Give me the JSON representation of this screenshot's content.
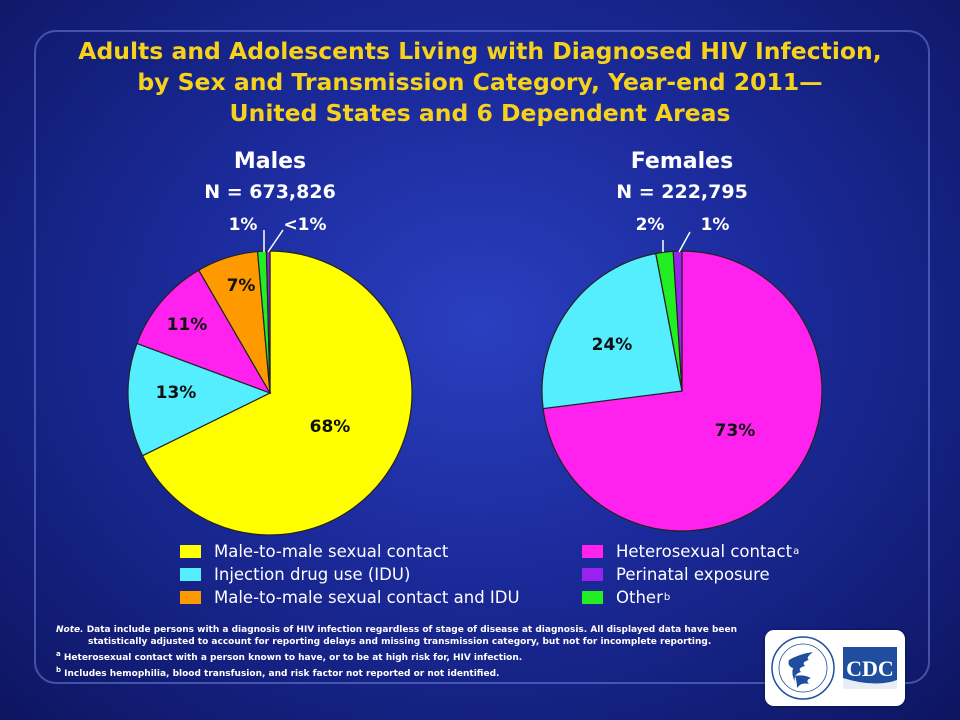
{
  "title": {
    "line1": "Adults and Adolescents Living with Diagnosed HIV Infection,",
    "line2": "by Sex and Transmission Category, Year-end 2011—",
    "line3": "United States and 6 Dependent Areas"
  },
  "colors": {
    "title": "#f7d21a",
    "male_to_male": "#ffff00",
    "idu": "#55eeff",
    "male_to_male_and_idu": "#ff9900",
    "heterosexual": "#ff22ee",
    "perinatal": "#9922ee",
    "other": "#22ee22"
  },
  "chart_data": [
    {
      "type": "pie",
      "title": "Males",
      "subtitle": "N = 673,826",
      "slices": [
        {
          "label": "Male-to-male sexual contact",
          "value": 68,
          "display": "68%",
          "color": "#ffff00"
        },
        {
          "label": "Injection drug use (IDU)",
          "value": 13,
          "display": "13%",
          "color": "#55eeff"
        },
        {
          "label": "Heterosexual contact",
          "value": 11,
          "display": "11%",
          "color": "#ff22ee"
        },
        {
          "label": "Male-to-male sexual contact and IDU",
          "value": 7,
          "display": "7%",
          "color": "#ff9900"
        },
        {
          "label": "Other",
          "value": 1,
          "display": "1%",
          "color": "#22ee22"
        },
        {
          "label": "Perinatal exposure",
          "value": 0.4,
          "display": "<1%",
          "color": "#9922ee"
        }
      ]
    },
    {
      "type": "pie",
      "title": "Females",
      "subtitle": "N = 222,795",
      "slices": [
        {
          "label": "Heterosexual contact",
          "value": 73,
          "display": "73%",
          "color": "#ff22ee"
        },
        {
          "label": "Injection drug use (IDU)",
          "value": 24,
          "display": "24%",
          "color": "#55eeff"
        },
        {
          "label": "Other",
          "value": 2,
          "display": "2%",
          "color": "#22ee22"
        },
        {
          "label": "Perinatal exposure",
          "value": 1,
          "display": "1%",
          "color": "#9922ee"
        }
      ]
    }
  ],
  "legend_left": [
    {
      "label": "Male-to-male sexual contact",
      "sup": "",
      "color": "#ffff00"
    },
    {
      "label": "Injection drug use (IDU)",
      "sup": "",
      "color": "#55eeff"
    },
    {
      "label": "Male-to-male sexual contact and IDU",
      "sup": "",
      "color": "#ff9900"
    }
  ],
  "legend_right": [
    {
      "label": "Heterosexual contact",
      "sup": "a",
      "color": "#ff22ee"
    },
    {
      "label": "Perinatal exposure",
      "sup": "",
      "color": "#9922ee"
    },
    {
      "label": "Other",
      "sup": "b",
      "color": "#22ee22"
    }
  ],
  "notes": {
    "note_prefix": "Note.",
    "note_line1": "Data include persons with a diagnosis of HIV infection regardless of stage of disease at diagnosis. All displayed data have been",
    "note_line2": "statistically adjusted to account for reporting delays and missing transmission category, but not for incomplete reporting.",
    "footnote_a_mark": "a",
    "footnote_a": "Heterosexual contact with a person known to have, or to be at high risk for, HIV infection.",
    "footnote_b_mark": "b",
    "footnote_b": "Includes hemophilia, blood transfusion, and risk factor not reported or not identified."
  },
  "logo": {
    "text": "CDC",
    "hhs_icon": "hhs-eagle-icon"
  }
}
